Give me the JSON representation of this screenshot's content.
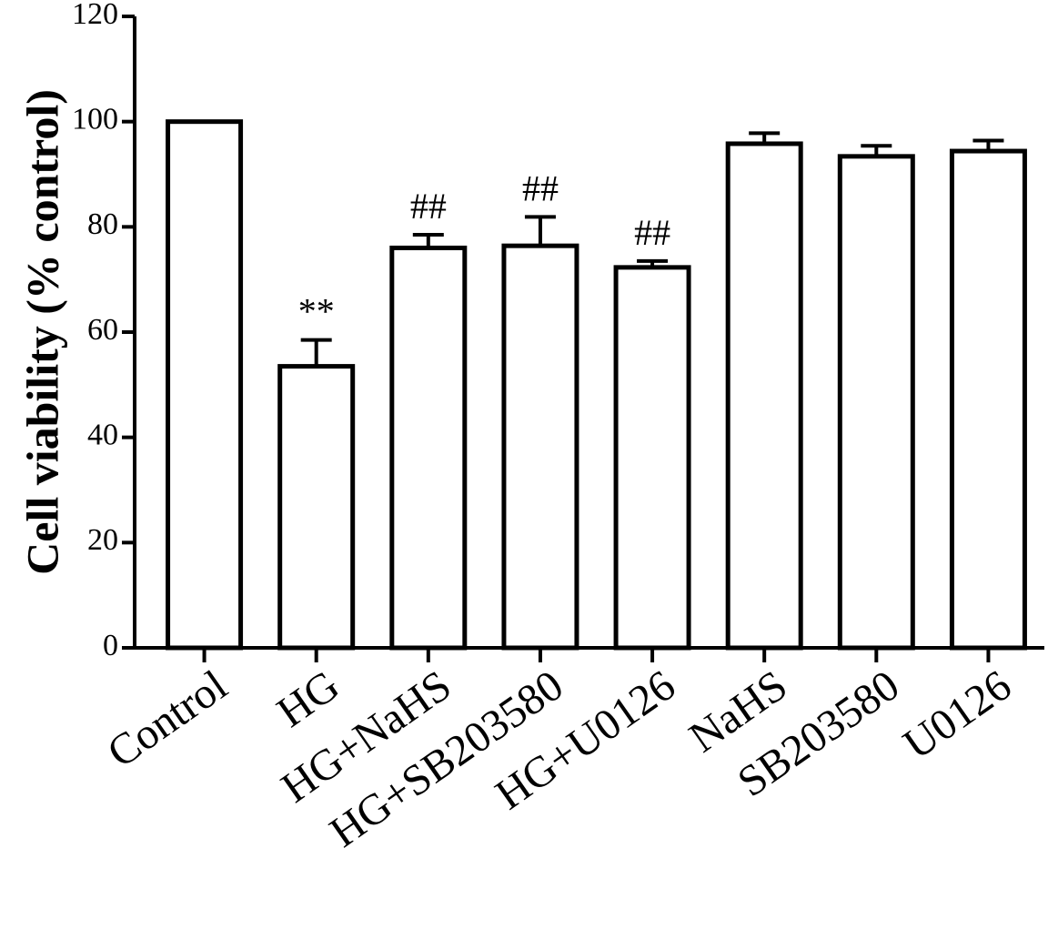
{
  "chart_data": {
    "type": "bar",
    "y_label": "Cell viability (% control)",
    "categories": [
      "Control",
      "HG",
      "HG+NaHS",
      "HG+SB203580",
      "HG+U0126",
      "NaHS",
      "SB203580",
      "U0126"
    ],
    "values": [
      100,
      53.5,
      76,
      76.4,
      72.3,
      95.8,
      93.4,
      94.4
    ],
    "errors": [
      null,
      5,
      2.5,
      5.5,
      1.2,
      2,
      2,
      2
    ],
    "annotations": [
      null,
      "**",
      "##",
      "##",
      "##",
      null,
      null,
      null
    ],
    "color": "#ffffff",
    "ylim": [
      0,
      120
    ],
    "yticks": [
      0,
      20,
      40,
      60,
      80,
      100,
      120
    ]
  }
}
